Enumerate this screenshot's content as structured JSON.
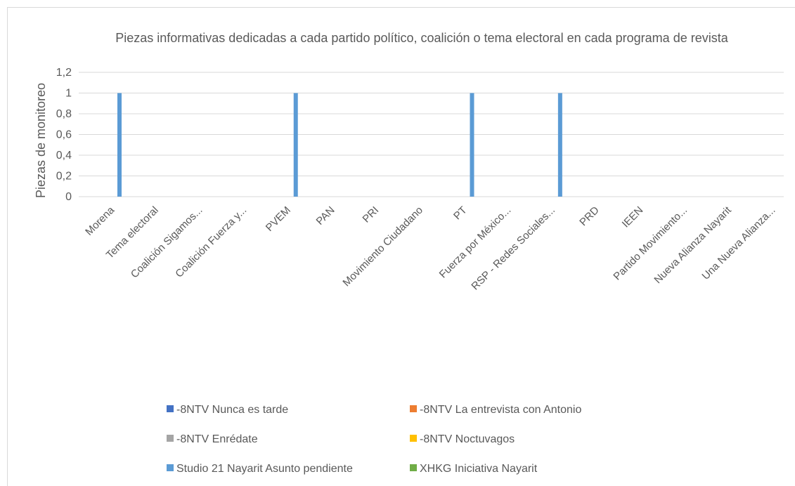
{
  "chart_data": {
    "type": "bar",
    "title": "Piezas informativas dedicadas a cada partido político, coalición o tema electoral en cada programa de revista",
    "y_label": "Piezas de monitoreo",
    "categories": [
      "Morena",
      "Tema electoral",
      "Coalición Sigamos...",
      "Coalición Fuerza y...",
      "PVEM",
      "PAN",
      "PRI",
      "Movimiento Ciudadano",
      "PT",
      "Fuerza por México...",
      "RSP - Redes Sociales...",
      "PRD",
      "IEEN",
      "Partido Movimiento...",
      "Nueva Alianza Nayarit",
      "Una Nueva Alianza..."
    ],
    "series": [
      {
        "name": "-8NTV Nunca es tarde",
        "color": "#4472c4",
        "values": [
          0,
          0,
          0,
          0,
          0,
          0,
          0,
          0,
          0,
          0,
          0,
          0,
          0,
          0,
          0,
          0
        ]
      },
      {
        "name": "-8NTV La entrevista con Antonio",
        "color": "#ed7d31",
        "values": [
          0,
          0,
          0,
          0,
          0,
          0,
          0,
          0,
          0,
          0,
          0,
          0,
          0,
          0,
          0,
          0
        ]
      },
      {
        "name": "-8NTV Enrédate",
        "color": "#a5a5a5",
        "values": [
          0,
          0,
          0,
          0,
          0,
          0,
          0,
          0,
          0,
          0,
          0,
          0,
          0,
          0,
          0,
          0
        ]
      },
      {
        "name": "-8NTV Noctuvagos",
        "color": "#ffc000",
        "values": [
          0,
          0,
          0,
          0,
          0,
          0,
          0,
          0,
          0,
          0,
          0,
          0,
          0,
          0,
          0,
          0
        ]
      },
      {
        "name": "Studio 21 Nayarit Asunto pendiente",
        "color": "#5b9bd5",
        "values": [
          1,
          0,
          0,
          0,
          1,
          0,
          0,
          0,
          1,
          0,
          1,
          0,
          0,
          0,
          0,
          0
        ]
      },
      {
        "name": "XHKG Iniciativa Nayarit",
        "color": "#70ad47",
        "values": [
          0,
          0,
          0,
          0,
          0,
          0,
          0,
          0,
          0,
          0,
          0,
          0,
          0,
          0,
          0,
          0
        ]
      }
    ],
    "ylim": [
      0,
      1.2
    ],
    "yticks": [
      0,
      {
        "value": 0.2,
        "label": "0,2"
      },
      {
        "value": 0.4,
        "label": "0,4"
      },
      {
        "value": 0.6,
        "label": "0,6"
      },
      {
        "value": 0.8,
        "label": "0,8"
      },
      1,
      {
        "value": 1.2,
        "label": "1,2"
      }
    ],
    "grid": true,
    "legend": "bottom"
  }
}
